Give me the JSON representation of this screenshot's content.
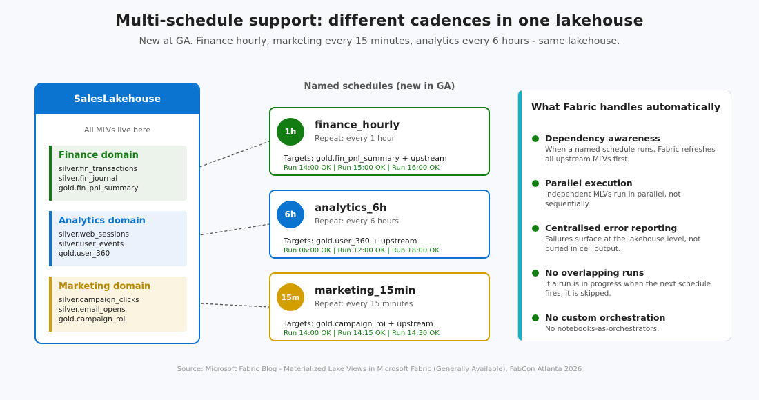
{
  "header": {
    "title": "Multi-schedule support: different cadences in one lakehouse",
    "subtitle": "New at GA. Finance hourly, marketing every 15 minutes, analytics every 6 hours - same lakehouse."
  },
  "lakehouse": {
    "name": "SalesLakehouse",
    "caption": "All MLVs live here",
    "domains": [
      {
        "name": "Finance domain",
        "tables": [
          "silver.fin_transactions",
          "silver.fin_journal",
          "gold.fin_pnl_summary"
        ],
        "color": "#137d13"
      },
      {
        "name": "Analytics domain",
        "tables": [
          "silver.web_sessions",
          "silver.user_events",
          "gold.user_360"
        ],
        "color": "#0a74d0"
      },
      {
        "name": "Marketing domain",
        "tables": [
          "silver.campaign_clicks",
          "silver.email_opens",
          "gold.campaign_roi"
        ],
        "color": "#d29e00"
      }
    ]
  },
  "schedules": {
    "heading": "Named schedules (new in GA)",
    "items": [
      {
        "badge": "1h",
        "name": "finance_hourly",
        "repeat": "Repeat: every 1 hour",
        "targets": "Targets: gold.fin_pnl_summary + upstream",
        "runs": "Run 14:00 OK | Run 15:00 OK | Run 16:00 OK",
        "color": "#137d13"
      },
      {
        "badge": "6h",
        "name": "analytics_6h",
        "repeat": "Repeat: every 6 hours",
        "targets": "Targets: gold.user_360 + upstream",
        "runs": "Run 06:00 OK | Run 12:00 OK | Run 18:00 OK",
        "color": "#0a74d0"
      },
      {
        "badge": "15m",
        "name": "marketing_15min",
        "repeat": "Repeat: every 15 minutes",
        "targets": "Targets: gold.campaign_roi + upstream",
        "runs": "Run 14:00 OK | Run 14:15 OK | Run 14:30 OK",
        "color": "#d29e00"
      }
    ]
  },
  "fabric": {
    "title": "What Fabric handles automatically",
    "accent": "#13b1c4",
    "features": [
      {
        "name": "Dependency awareness",
        "desc": "When a named schedule runs, Fabric refreshes all upstream MLVs first."
      },
      {
        "name": "Parallel execution",
        "desc": "Independent MLVs run in parallel, not sequentially."
      },
      {
        "name": "Centralised error reporting",
        "desc": "Failures surface at the lakehouse level, not buried in cell output."
      },
      {
        "name": "No overlapping runs",
        "desc": "If a run is in progress when the next schedule fires, it is skipped."
      },
      {
        "name": "No custom orchestration",
        "desc": "No notebooks-as-orchestrators."
      }
    ]
  },
  "footer": {
    "source": "Source: Microsoft Fabric Blog - Materialized Lake Views in Microsoft Fabric (Generally Available), FabCon Atlanta 2026"
  }
}
